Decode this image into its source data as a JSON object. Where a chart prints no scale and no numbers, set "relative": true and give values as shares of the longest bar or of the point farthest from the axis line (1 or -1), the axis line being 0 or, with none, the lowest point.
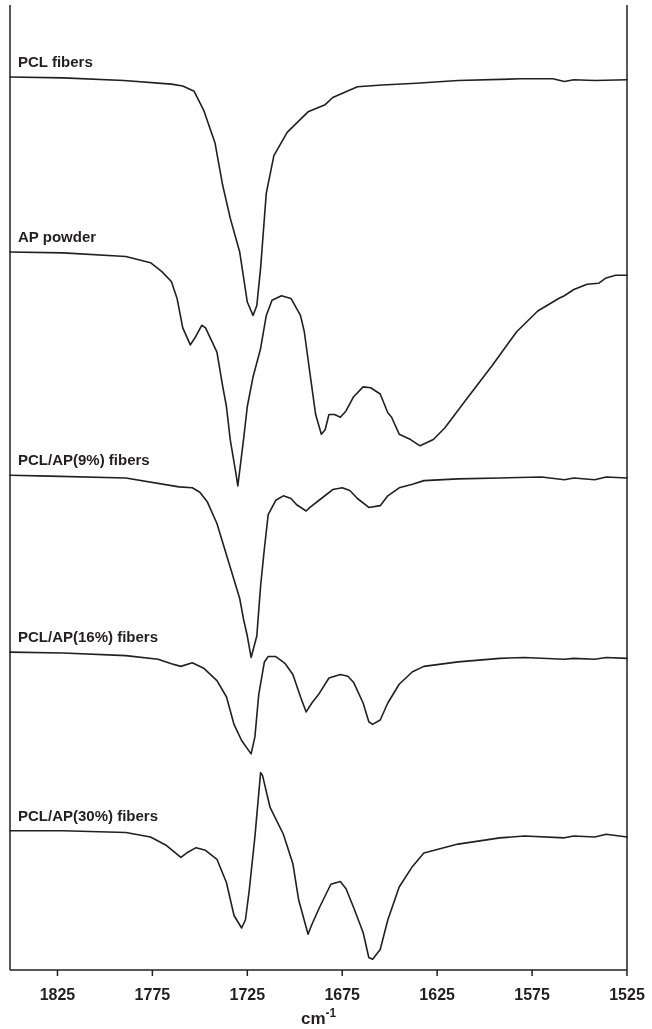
{
  "chart_data": {
    "type": "line",
    "relative": true,
    "xlabel": "cm$^{-1}$",
    "xlim": [
      1850,
      1525
    ],
    "xticks": [
      1825,
      1775,
      1725,
      1675,
      1625,
      1575,
      1525
    ],
    "series": [
      {
        "name": "PCL fibers",
        "color": "#231f20",
        "x": [
          1850,
          1822,
          1790,
          1765,
          1759,
          1753,
          1748,
          1742,
          1738,
          1734,
          1729,
          1725,
          1722,
          1720,
          1718,
          1715,
          1711,
          1704,
          1693,
          1684,
          1680,
          1667,
          1654,
          1636,
          1614,
          1581,
          1564,
          1558,
          1553,
          1542,
          1525
        ],
        "values": [
          1.0,
          0.999,
          0.996,
          0.992,
          0.99,
          0.984,
          0.963,
          0.926,
          0.879,
          0.842,
          0.804,
          0.748,
          0.733,
          0.744,
          0.786,
          0.87,
          0.912,
          0.938,
          0.961,
          0.969,
          0.977,
          0.989,
          0.991,
          0.993,
          0.996,
          0.998,
          0.998,
          0.995,
          0.997,
          0.996,
          0.997
        ]
      },
      {
        "name": "AP powder",
        "color": "#231f20",
        "x": [
          1850,
          1822,
          1789,
          1776,
          1770,
          1765,
          1762,
          1759,
          1755,
          1752,
          1749,
          1747,
          1741,
          1738,
          1736,
          1734,
          1731,
          1730,
          1727,
          1725,
          1722,
          1718,
          1715,
          1712,
          1707,
          1702,
          1697,
          1695,
          1692,
          1689,
          1686,
          1684,
          1682,
          1679,
          1676,
          1673,
          1669,
          1664,
          1660,
          1655,
          1651,
          1649,
          1645,
          1639,
          1634,
          1627,
          1621,
          1610,
          1596,
          1583,
          1572,
          1561,
          1558,
          1553,
          1546,
          1540,
          1536,
          1531,
          1525
        ],
        "values": [
          0.804,
          0.803,
          0.799,
          0.792,
          0.782,
          0.771,
          0.752,
          0.719,
          0.7,
          0.71,
          0.722,
          0.719,
          0.692,
          0.654,
          0.631,
          0.594,
          0.556,
          0.542,
          0.594,
          0.631,
          0.664,
          0.696,
          0.733,
          0.75,
          0.755,
          0.752,
          0.733,
          0.715,
          0.668,
          0.622,
          0.6,
          0.605,
          0.622,
          0.622,
          0.619,
          0.626,
          0.642,
          0.653,
          0.652,
          0.645,
          0.624,
          0.619,
          0.6,
          0.594,
          0.587,
          0.594,
          0.607,
          0.638,
          0.677,
          0.715,
          0.738,
          0.752,
          0.755,
          0.762,
          0.768,
          0.769,
          0.775,
          0.778,
          0.778
        ]
      },
      {
        "name": "PCL/AP(9%) fibers",
        "color": "#231f20",
        "x": [
          1850,
          1829,
          1789,
          1761,
          1754,
          1750,
          1746,
          1741,
          1737,
          1735,
          1731,
          1729,
          1727,
          1725,
          1723,
          1720,
          1718,
          1716,
          1714,
          1710,
          1706,
          1702,
          1699,
          1694,
          1692,
          1686,
          1680,
          1675,
          1671,
          1667,
          1661,
          1655,
          1651,
          1645,
          1638,
          1632,
          1614,
          1592,
          1570,
          1558,
          1553,
          1542,
          1536,
          1525
        ],
        "values": [
          0.554,
          0.553,
          0.551,
          0.541,
          0.54,
          0.535,
          0.524,
          0.5,
          0.472,
          0.458,
          0.43,
          0.416,
          0.393,
          0.374,
          0.35,
          0.374,
          0.43,
          0.472,
          0.51,
          0.526,
          0.531,
          0.528,
          0.521,
          0.514,
          0.518,
          0.528,
          0.538,
          0.54,
          0.537,
          0.528,
          0.518,
          0.52,
          0.531,
          0.54,
          0.544,
          0.548,
          0.55,
          0.551,
          0.552,
          0.549,
          0.551,
          0.549,
          0.552,
          0.551
        ]
      },
      {
        "name": "PCL/AP(16%) fibers",
        "color": "#231f20",
        "x": [
          1850,
          1822,
          1789,
          1772,
          1765,
          1760,
          1754,
          1748,
          1741,
          1736,
          1732,
          1728,
          1723,
          1721,
          1719,
          1716,
          1714,
          1710,
          1705,
          1701,
          1697,
          1694,
          1691,
          1687,
          1682,
          1676,
          1672,
          1669,
          1664,
          1661,
          1659,
          1655,
          1651,
          1645,
          1638,
          1632,
          1614,
          1592,
          1579,
          1558,
          1553,
          1542,
          1536,
          1525
        ],
        "values": [
          0.356,
          0.355,
          0.352,
          0.348,
          0.343,
          0.34,
          0.344,
          0.338,
          0.324,
          0.306,
          0.275,
          0.257,
          0.242,
          0.261,
          0.308,
          0.345,
          0.351,
          0.351,
          0.343,
          0.331,
          0.306,
          0.289,
          0.299,
          0.31,
          0.327,
          0.331,
          0.329,
          0.322,
          0.299,
          0.278,
          0.275,
          0.28,
          0.299,
          0.32,
          0.334,
          0.34,
          0.345,
          0.349,
          0.35,
          0.348,
          0.349,
          0.348,
          0.35,
          0.349
        ]
      },
      {
        "name": "PCL/AP(30%) fibers",
        "color": "#231f20",
        "x": [
          1850,
          1822,
          1789,
          1776,
          1768,
          1760,
          1757,
          1752,
          1747,
          1741,
          1736,
          1732,
          1728,
          1726,
          1724,
          1721,
          1718,
          1717,
          1713,
          1706,
          1701,
          1698,
          1693,
          1691,
          1687,
          1681,
          1676,
          1673,
          1669,
          1664,
          1661,
          1659,
          1655,
          1651,
          1645,
          1638,
          1632,
          1614,
          1592,
          1579,
          1558,
          1553,
          1542,
          1536,
          1525
        ],
        "values": [
          0.156,
          0.156,
          0.154,
          0.149,
          0.14,
          0.126,
          0.131,
          0.137,
          0.134,
          0.124,
          0.098,
          0.061,
          0.047,
          0.056,
          0.089,
          0.149,
          0.221,
          0.218,
          0.182,
          0.152,
          0.119,
          0.079,
          0.04,
          0.051,
          0.07,
          0.096,
          0.099,
          0.091,
          0.07,
          0.042,
          0.014,
          0.012,
          0.023,
          0.056,
          0.093,
          0.116,
          0.131,
          0.141,
          0.148,
          0.15,
          0.148,
          0.15,
          0.149,
          0.152,
          0.149
        ]
      }
    ]
  }
}
